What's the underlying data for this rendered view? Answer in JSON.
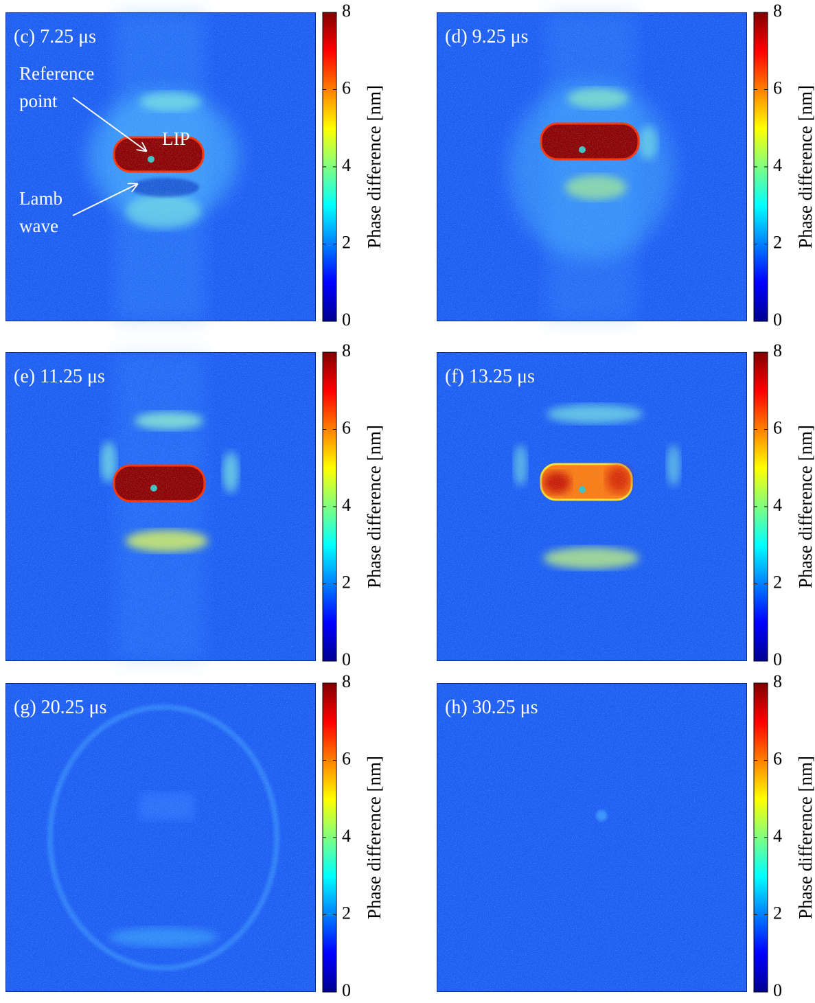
{
  "panels": [
    {
      "label": "(c) 7.25 μs"
    },
    {
      "label": "(d) 9.25 μs"
    },
    {
      "label": "(e) 11.25 μs"
    },
    {
      "label": "(f) 13.25 μs"
    },
    {
      "label": "(g) 20.25 μs"
    },
    {
      "label": "(h) 30.25 μs"
    }
  ],
  "colorbar": {
    "label": "Phase difference  [nm]",
    "range": [
      0,
      8
    ],
    "ticks": [
      0,
      2,
      4,
      6,
      8
    ]
  },
  "annotations": {
    "reference_point": [
      "Reference",
      "point"
    ],
    "lip": "LIP",
    "lamb_wave": [
      "Lamb",
      "wave"
    ]
  }
}
